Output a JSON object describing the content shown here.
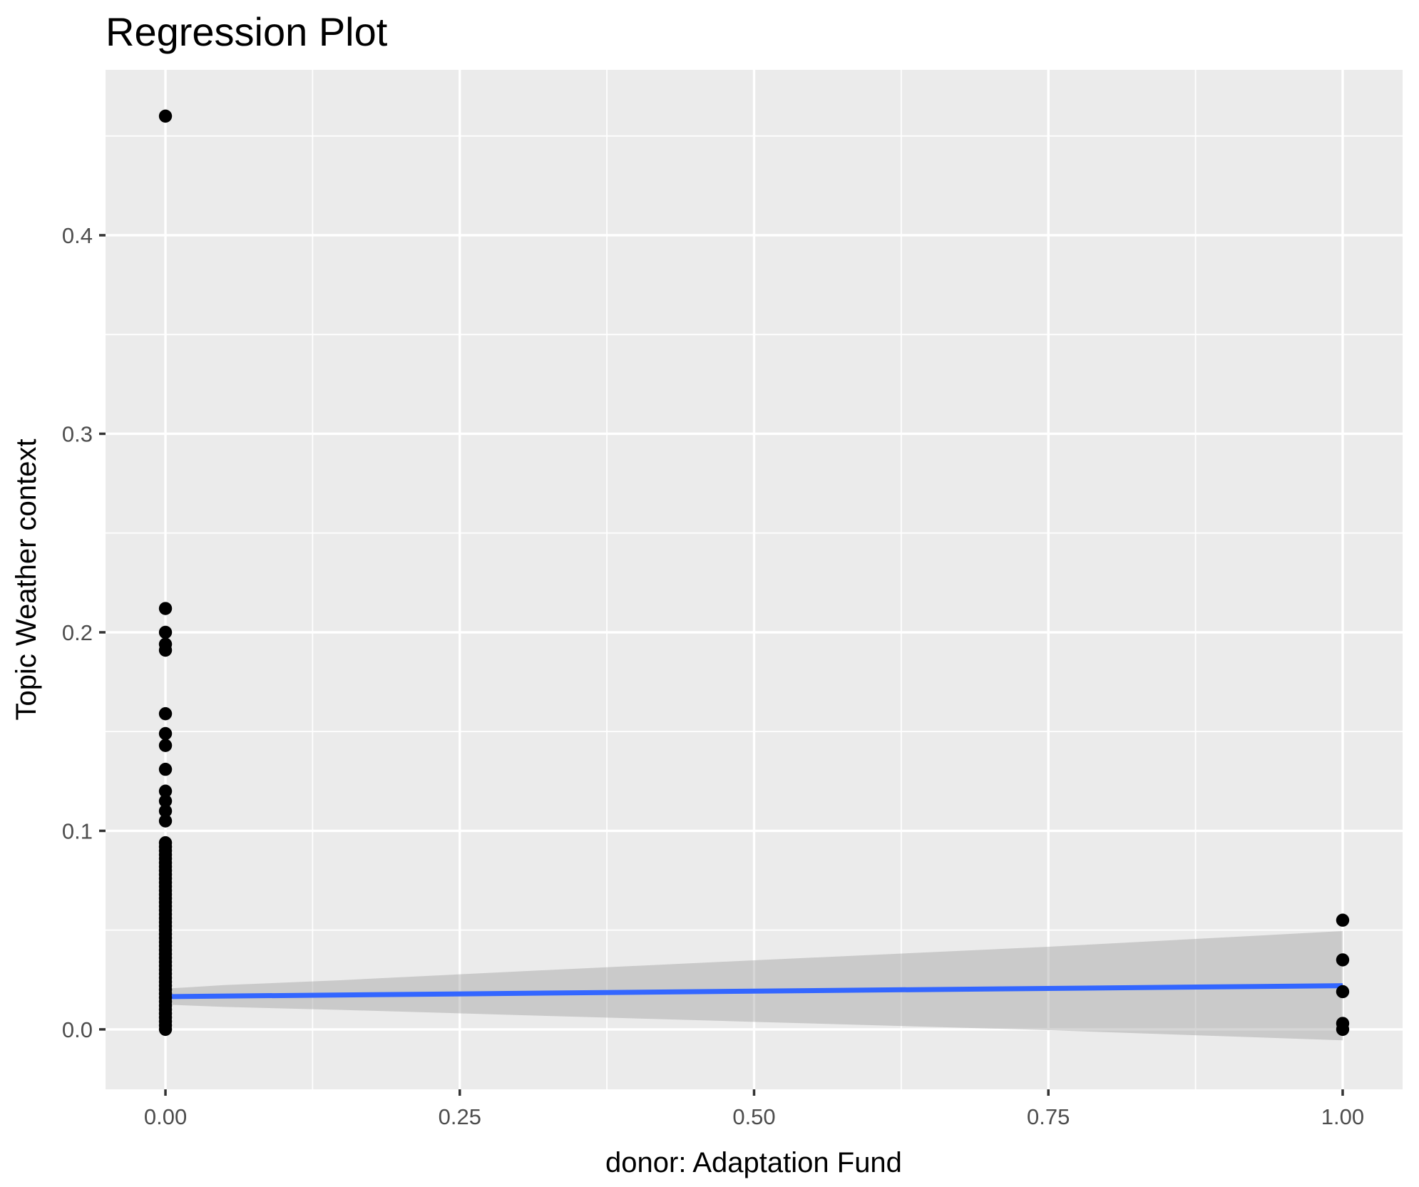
{
  "title": "Regression Plot",
  "chart_data": {
    "type": "scatter",
    "title": "Regression Plot",
    "xlabel": "donor: Adaptation Fund",
    "ylabel": "Topic Weather context",
    "legend_position": "none",
    "grid": true,
    "background": "ggplot-grey-panel",
    "xlim": [
      -0.0509,
      1.0509
    ],
    "ylim": [
      -0.0302,
      0.4833
    ],
    "x_ticks": {
      "values": [
        0,
        0.25,
        0.5,
        0.75,
        1.0
      ],
      "labels": [
        "0.00",
        "0.25",
        "0.50",
        "0.75",
        "1.00"
      ]
    },
    "y_ticks": {
      "values": [
        0,
        0.1,
        0.2,
        0.3,
        0.4
      ],
      "labels": [
        "0.0",
        "0.1",
        "0.2",
        "0.3",
        "0.4"
      ]
    },
    "x_minor_ticks": [
      0.125,
      0.375,
      0.625,
      0.875
    ],
    "y_minor_ticks": [
      0.05,
      0.15,
      0.25,
      0.35,
      0.45
    ],
    "series": [
      {
        "name": "observations",
        "type": "scatter",
        "color": "#000000",
        "groups": [
          {
            "x": 0,
            "y": [
              0.0,
              0.002,
              0.004,
              0.006,
              0.008,
              0.01,
              0.012,
              0.014,
              0.016,
              0.018,
              0.02,
              0.022,
              0.024,
              0.026,
              0.028,
              0.03,
              0.032,
              0.034,
              0.036,
              0.038,
              0.04,
              0.042,
              0.044,
              0.046,
              0.048,
              0.05,
              0.052,
              0.054,
              0.056,
              0.058,
              0.06,
              0.062,
              0.064,
              0.066,
              0.068,
              0.07,
              0.072,
              0.074,
              0.076,
              0.078,
              0.08,
              0.082,
              0.084,
              0.086,
              0.088,
              0.09,
              0.092,
              0.094,
              0.105,
              0.11,
              0.115,
              0.12,
              0.131,
              0.143,
              0.149,
              0.159,
              0.191,
              0.194,
              0.2,
              0.212,
              0.46
            ]
          },
          {
            "x": 1,
            "y": [
              0.0,
              0.003,
              0.019,
              0.035,
              0.055
            ]
          }
        ]
      },
      {
        "name": "regression-fit",
        "type": "line",
        "color": "#3366FF",
        "points": [
          [
            0,
            0.0165
          ],
          [
            1,
            0.022
          ]
        ]
      },
      {
        "name": "confidence-band",
        "type": "area",
        "color": "#999999",
        "opacity": 0.4,
        "upper": [
          [
            0,
            0.0205
          ],
          [
            0.05,
            0.0223
          ],
          [
            0.15,
            0.0248
          ],
          [
            0.3,
            0.0292
          ],
          [
            0.5,
            0.0348
          ],
          [
            0.75,
            0.0416
          ],
          [
            1,
            0.0495
          ]
        ],
        "lower": [
          [
            0,
            0.0125
          ],
          [
            0.05,
            0.0113
          ],
          [
            0.15,
            0.0098
          ],
          [
            0.3,
            0.0072
          ],
          [
            0.5,
            0.0038
          ],
          [
            0.75,
            -0.0004
          ],
          [
            1,
            -0.0055
          ]
        ]
      }
    ]
  },
  "colors": {
    "page_background": "#FFFFFF",
    "panel_background": "#EBEBEB",
    "gridline": "#FFFFFF",
    "point": "#000000",
    "fit_line": "#3366FF",
    "band_fill": "#999999",
    "tick_mark": "#333333",
    "tick_label": "#4D4D4D",
    "title_text": "#000000"
  }
}
